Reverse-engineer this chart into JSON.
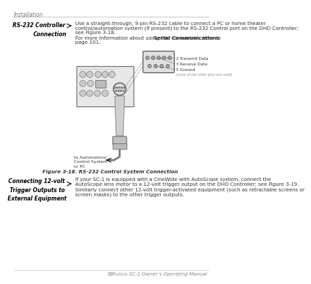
{
  "bg_color": "#ffffff",
  "page_header": "Installation",
  "section1_label": "RS-232 Controller \nConnection",
  "section1_body_line1": "Use a straight-through, 9-pin RS-232 cable to connect a PC or home theater",
  "section1_body_line2": "control/automation system (if present) to the RS-232 Control port on the DHD Controller;",
  "section1_body_line3": "see Figure 3-18.",
  "section1_para2a": "For more information about using this connection, refer to ",
  "section1_para2_bold": "Serial Communications",
  "section1_para2b": " on",
  "section1_para2c": "page 101.",
  "figure_caption": "Figure 3-18. RS-232 Control System Connection",
  "diagram_label_transmit": "2 Transmit Data",
  "diagram_label_receive": "3 Receive Data",
  "diagram_label_ground": "5 Ground",
  "diagram_label_note": "(none of the other pins are used)",
  "diagram_label_auto": "to Automation/\nControl System\nor PC",
  "section2_label": "Connecting 12-volt \nTrigger Outputs to \nExternal Equipment",
  "section2_body_line1": "If your SC-1 is equipped with a CineWide with AutoScope system, connect the",
  "section2_body_line2": "AutoScope lens motor to a 12-volt trigger output on the DHD Controller; see Figure 3-19.",
  "section2_body_line3": "Similarly connect other 12-volt trigger-activated equipment (such as retractable screens or",
  "section2_body_line4": "screen masks) to the other trigger outputs.",
  "footer_page": "38",
  "footer_brand": "Runco SC-1 Owner’s Operating Manual",
  "text_color": "#333333",
  "label_color": "#000000",
  "header_color": "#777777",
  "rule_color": "#bbbbbb",
  "diagram_color": "#999999"
}
